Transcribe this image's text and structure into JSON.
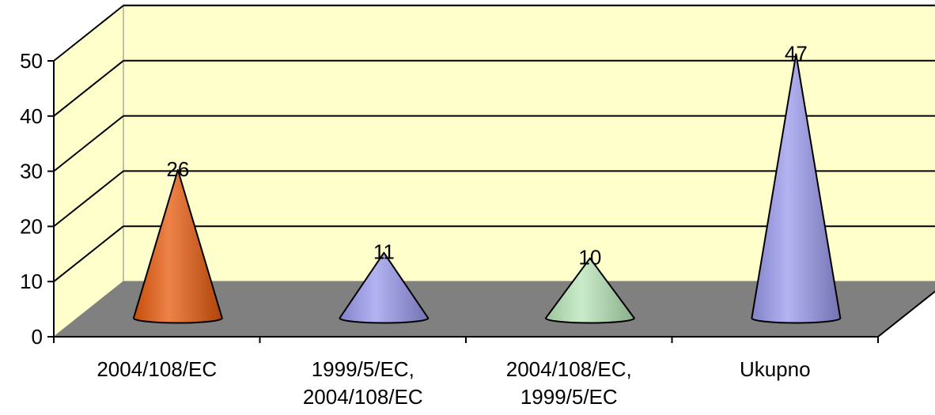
{
  "chart_data": {
    "type": "bar",
    "style": "3d-cone",
    "categories": [
      [
        "2004/108/EC"
      ],
      [
        "1999/5/EC,",
        "2004/108/EC"
      ],
      [
        "2004/108/EC,",
        "1999/5/EC"
      ],
      [
        "Ukupno"
      ]
    ],
    "values": [
      26,
      11,
      10,
      47
    ],
    "value_labels": [
      "26",
      "11",
      "10",
      "47"
    ],
    "bar_colors": [
      "#e85a0c",
      "#9999ee",
      "#b8e6b8",
      "#9999ee"
    ],
    "ylim": [
      0,
      50
    ],
    "yticks": [
      "0",
      "10",
      "20",
      "30",
      "40",
      "50"
    ],
    "grid": true,
    "legend": "none",
    "colors": {
      "wall": "#ffffcc",
      "floor": "#808080",
      "gridline": "#000000"
    }
  }
}
